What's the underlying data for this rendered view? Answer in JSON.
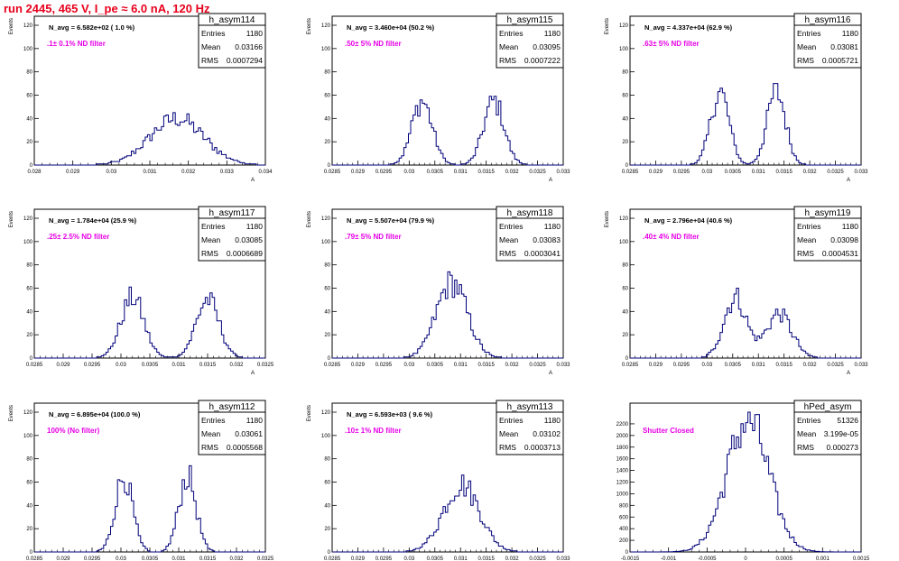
{
  "run_title": "run 2445,   465 V, I_pe ≈ 6.0 nA, 120 Hz",
  "colors": {
    "histogram": "#00007a",
    "annotation": "#e600e6",
    "title": "#e8001c",
    "axis": "#000000"
  },
  "chart_data": [
    {
      "type": "histogram",
      "title": "h_asym114",
      "stats": {
        "Entries": "1180",
        "Mean": "0.03166",
        "RMS": "0.0007294"
      },
      "navg_label": "N_avg = 6.582e+02 ( 1.0 %)",
      "filter_label": ".1± 0.1% ND filter",
      "ylabel": "Events",
      "xlabel": "A",
      "xlim": [
        0.028,
        0.034
      ],
      "ylim": [
        0,
        120
      ],
      "xticks": [
        "0.028",
        "0.029",
        "0.03",
        "0.031",
        "0.032",
        "0.033",
        "0.034"
      ],
      "yticks": [
        "0",
        "20",
        "40",
        "60",
        "80",
        "100",
        "120"
      ],
      "peaks": [
        {
          "mu": 0.0317,
          "sigma": 0.0007,
          "amp": 40
        }
      ]
    },
    {
      "type": "histogram",
      "title": "h_asym115",
      "stats": {
        "Entries": "1180",
        "Mean": "0.03095",
        "RMS": "0.0007222"
      },
      "navg_label": "N_avg = 3.460e+04 (50.2 %)",
      "filter_label": ".50± 5% ND filter",
      "ylabel": "Events",
      "xlabel": "A",
      "xlim": [
        0.0285,
        0.033
      ],
      "ylim": [
        0,
        120
      ],
      "xticks": [
        "0.0285",
        "0.029",
        "0.0295",
        "0.03",
        "0.0305",
        "0.031",
        "0.0315",
        "0.032",
        "0.0325",
        "0.033"
      ],
      "yticks": [
        "0",
        "20",
        "40",
        "60",
        "80",
        "100",
        "120"
      ],
      "peaks": [
        {
          "mu": 0.03025,
          "sigma": 0.0002,
          "amp": 55
        },
        {
          "mu": 0.03165,
          "sigma": 0.0002,
          "amp": 55
        }
      ]
    },
    {
      "type": "histogram",
      "title": "h_asym116",
      "stats": {
        "Entries": "1180",
        "Mean": "0.03081",
        "RMS": "0.0005721"
      },
      "navg_label": "N_avg = 4.337e+04 (62.9 %)",
      "filter_label": ".63± 5% ND filter",
      "ylabel": "Events",
      "xlabel": "A",
      "xlim": [
        0.0285,
        0.033
      ],
      "ylim": [
        0,
        120
      ],
      "xticks": [
        "0.0285",
        "0.029",
        "0.0295",
        "0.03",
        "0.0305",
        "0.031",
        "0.0315",
        "0.032",
        "0.0325",
        "0.033"
      ],
      "yticks": [
        "0",
        "20",
        "40",
        "60",
        "80",
        "100",
        "120"
      ],
      "peaks": [
        {
          "mu": 0.03025,
          "sigma": 0.00018,
          "amp": 63
        },
        {
          "mu": 0.03135,
          "sigma": 0.00018,
          "amp": 63
        }
      ]
    },
    {
      "type": "histogram",
      "title": "h_asym117",
      "stats": {
        "Entries": "1180",
        "Mean": "0.03085",
        "RMS": "0.0006689"
      },
      "navg_label": "N_avg = 1.784e+04 (25.9 %)",
      "filter_label": ".25± 2.5% ND filter",
      "ylabel": "Events",
      "xlabel": "A",
      "xlim": [
        0.0285,
        0.0325
      ],
      "ylim": [
        0,
        120
      ],
      "xticks": [
        "0.0285",
        "0.029",
        "0.0295",
        "0.03",
        "0.0305",
        "0.031",
        "0.0315",
        "0.032",
        "0.0325"
      ],
      "yticks": [
        "0",
        "20",
        "40",
        "60",
        "80",
        "100",
        "120"
      ],
      "peaks": [
        {
          "mu": 0.0302,
          "sigma": 0.0002,
          "amp": 52
        },
        {
          "mu": 0.0315,
          "sigma": 0.0002,
          "amp": 50
        }
      ]
    },
    {
      "type": "histogram",
      "title": "h_asym118",
      "stats": {
        "Entries": "1180",
        "Mean": "0.03083",
        "RMS": "0.0003041"
      },
      "navg_label": "N_avg = 5.507e+04 (79.9 %)",
      "filter_label": ".79± 5% ND filter",
      "ylabel": "Events",
      "xlabel": "A",
      "xlim": [
        0.0285,
        0.033
      ],
      "ylim": [
        0,
        120
      ],
      "xticks": [
        "0.0285",
        "0.029",
        "0.0295",
        "0.03",
        "0.0305",
        "0.031",
        "0.0315",
        "0.032",
        "0.0325",
        "0.033"
      ],
      "yticks": [
        "0",
        "20",
        "40",
        "60",
        "80",
        "100",
        "120"
      ],
      "peaks": [
        {
          "mu": 0.03083,
          "sigma": 0.0003,
          "amp": 65
        }
      ]
    },
    {
      "type": "histogram",
      "title": "h_asym119",
      "stats": {
        "Entries": "1180",
        "Mean": "0.03098",
        "RMS": "0.0004531"
      },
      "navg_label": "N_avg = 2.796e+04 (40.6 %)",
      "filter_label": ".40± 4% ND filter",
      "ylabel": "Events",
      "xlabel": "A",
      "xlim": [
        0.0285,
        0.033
      ],
      "ylim": [
        0,
        120
      ],
      "xticks": [
        "0.0285",
        "0.029",
        "0.0295",
        "0.03",
        "0.0305",
        "0.031",
        "0.0315",
        "0.032",
        "0.0325",
        "0.033"
      ],
      "yticks": [
        "0",
        "20",
        "40",
        "60",
        "80",
        "100",
        "120"
      ],
      "peaks": [
        {
          "mu": 0.03055,
          "sigma": 0.00022,
          "amp": 52
        },
        {
          "mu": 0.0314,
          "sigma": 0.00025,
          "amp": 38
        }
      ]
    },
    {
      "type": "histogram",
      "title": "h_asym112",
      "stats": {
        "Entries": "1180",
        "Mean": "0.03061",
        "RMS": "0.0005568"
      },
      "navg_label": "N_avg = 6.895e+04 (100.0 %)",
      "filter_label": "100% (No filter)",
      "ylabel": "Events",
      "xlabel": "A",
      "xlim": [
        0.0285,
        0.0325
      ],
      "ylim": [
        0,
        120
      ],
      "xticks": [
        "0.0285",
        "0.029",
        "0.0295",
        "0.03",
        "0.0305",
        "0.031",
        "0.0315",
        "0.032",
        "0.0325"
      ],
      "yticks": [
        "0",
        "20",
        "40",
        "60",
        "80",
        "100",
        "120"
      ],
      "peaks": [
        {
          "mu": 0.03005,
          "sigma": 0.00015,
          "amp": 65
        },
        {
          "mu": 0.03115,
          "sigma": 0.00015,
          "amp": 65
        }
      ]
    },
    {
      "type": "histogram",
      "title": "h_asym113",
      "stats": {
        "Entries": "1180",
        "Mean": "0.03102",
        "RMS": "0.0003713"
      },
      "navg_label": "N_avg = 6.593e+03 ( 9.6 %)",
      "filter_label": ".10± 1% ND filter",
      "ylabel": "Events",
      "xlabel": "A",
      "xlim": [
        0.0285,
        0.033
      ],
      "ylim": [
        0,
        120
      ],
      "xticks": [
        "0.0285",
        "0.029",
        "0.0295",
        "0.03",
        "0.0305",
        "0.031",
        "0.0315",
        "0.032",
        "0.0325",
        "0.033"
      ],
      "yticks": [
        "0",
        "20",
        "40",
        "60",
        "80",
        "100",
        "120"
      ],
      "peaks": [
        {
          "mu": 0.03102,
          "sigma": 0.00035,
          "amp": 58
        }
      ]
    },
    {
      "type": "histogram",
      "title": "hPed_asym",
      "stats": {
        "Entries": "51326",
        "Mean": "3.199e-05",
        "RMS": "0.000273"
      },
      "navg_label": "",
      "filter_label": "Shutter Closed",
      "ylabel": "",
      "xlabel": "",
      "xlim": [
        -0.0015,
        0.0015
      ],
      "ylim": [
        0,
        2400
      ],
      "xticks": [
        "-0.0015",
        "-0.001",
        "-0.0005",
        "0",
        "0.0005",
        "0.001",
        "0.0015"
      ],
      "yticks": [
        "0",
        "200",
        "400",
        "600",
        "800",
        "1000",
        "1200",
        "1400",
        "1600",
        "1800",
        "2000",
        "2200"
      ],
      "peaks": [
        {
          "mu": 3e-05,
          "sigma": 0.000273,
          "amp": 2250
        }
      ]
    }
  ]
}
